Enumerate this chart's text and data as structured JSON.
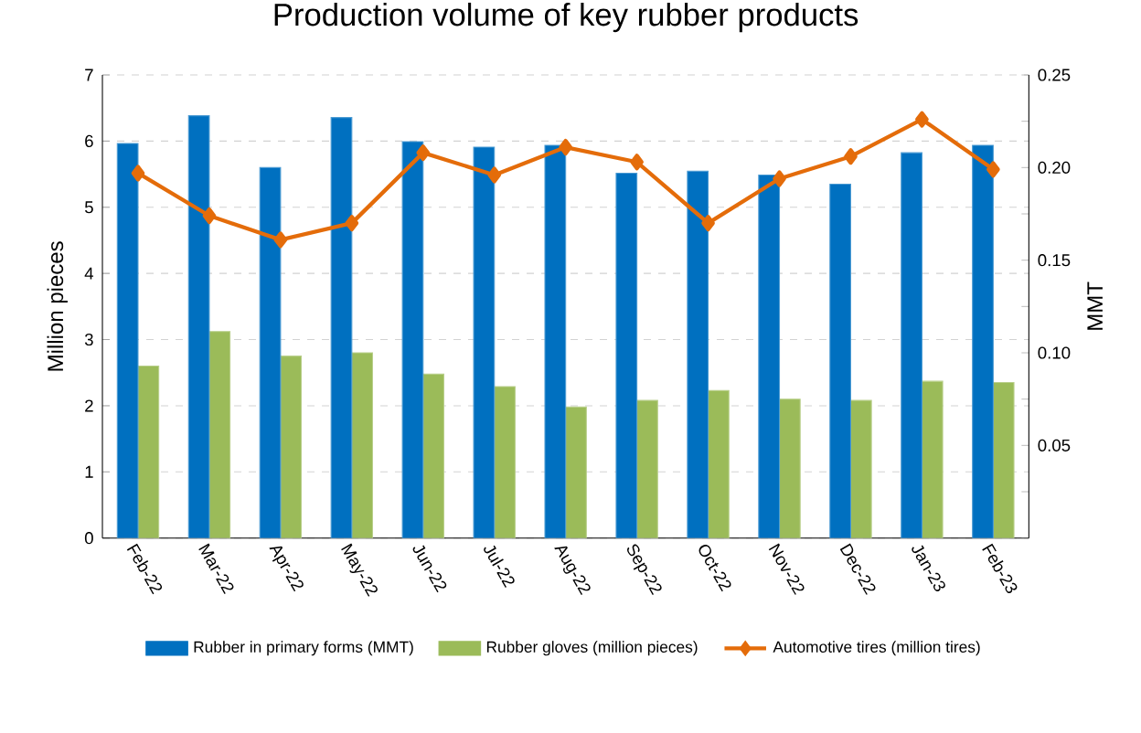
{
  "chart_data": {
    "type": "bar",
    "title": "Production volume of key rubber products",
    "ylabel": "Million pieces",
    "y2label": "MMT",
    "categories": [
      "Feb-22",
      "Mar-22",
      "Apr-22",
      "May-22",
      "Jun-22",
      "Jul-22",
      "Aug-22",
      "Sep-22",
      "Oct-22",
      "Nov-22",
      "Dec-22",
      "Jan-23",
      "Feb-23"
    ],
    "series": [
      {
        "name": "Rubber in primary forms (MMT)",
        "color": "#0070c0",
        "axis": "y2",
        "values": [
          0.213,
          0.228,
          0.2,
          0.227,
          0.214,
          0.211,
          0.212,
          0.197,
          0.198,
          0.196,
          0.191,
          0.208,
          0.212
        ]
      },
      {
        "name": "Rubber gloves (million pieces)",
        "color": "#9bbb59",
        "axis": "y",
        "values": [
          2.6,
          3.12,
          2.75,
          2.8,
          2.48,
          2.29,
          1.98,
          2.08,
          2.23,
          2.1,
          2.08,
          2.37,
          2.35
        ]
      },
      {
        "name": "Automotive tires (million tires)",
        "type": "line",
        "color": "#e46c0a",
        "axis": "y2",
        "marker": "diamond",
        "line_style": "solid",
        "values": [
          0.197,
          0.174,
          0.161,
          0.17,
          0.208,
          0.196,
          0.211,
          0.203,
          0.17,
          0.194,
          0.206,
          0.226,
          0.199
        ]
      }
    ],
    "ylim": [
      0,
      7
    ],
    "yticks": [
      0,
      1,
      2,
      3,
      4,
      5,
      6,
      7
    ],
    "y2lim": [
      0,
      0.25
    ],
    "y2ticks": [
      {
        "value": 0,
        "label": null
      },
      {
        "value": 0.025,
        "label": null
      },
      {
        "value": 0.05,
        "label": "0.05"
      },
      {
        "value": 0.075,
        "label": null
      },
      {
        "value": 0.1,
        "label": "0.10"
      },
      {
        "value": 0.125,
        "label": null
      },
      {
        "value": 0.15,
        "label": "0.15"
      },
      {
        "value": 0.175,
        "label": null
      },
      {
        "value": 0.2,
        "label": "0.20"
      },
      {
        "value": 0.225,
        "label": null
      },
      {
        "value": 0.25,
        "label": "0.25"
      }
    ],
    "grid": "y",
    "legend": "bottom"
  }
}
